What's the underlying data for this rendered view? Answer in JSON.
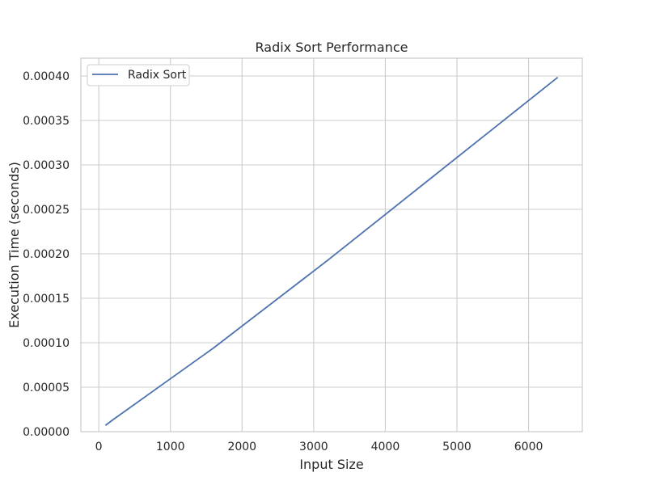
{
  "chart_data": {
    "type": "line",
    "title": "Radix Sort Performance",
    "xlabel": "Input Size",
    "ylabel": "Execution Time (seconds)",
    "xlim": [
      -250,
      6750
    ],
    "ylim": [
      0,
      0.00042
    ],
    "xticks": [
      0,
      1000,
      2000,
      3000,
      4000,
      5000,
      6000
    ],
    "xtick_labels": [
      "0",
      "1000",
      "2000",
      "3000",
      "4000",
      "5000",
      "6000"
    ],
    "yticks": [
      0,
      5e-05,
      0.0001,
      0.00015,
      0.0002,
      0.00025,
      0.0003,
      0.00035,
      0.0004
    ],
    "ytick_labels": [
      "0.00000",
      "0.00005",
      "0.00010",
      "0.00015",
      "0.00020",
      "0.00025",
      "0.00030",
      "0.00035",
      "0.00040"
    ],
    "grid": true,
    "legend_position": "top-left",
    "series": [
      {
        "name": "Radix Sort",
        "color": "#4c72b0",
        "x": [
          100,
          200,
          400,
          800,
          1600,
          3200,
          6400
        ],
        "y": [
          7.5e-06,
          1.35e-05,
          2.5e-05,
          4.8e-05,
          9.4e-05,
          0.000193,
          0.000398
        ]
      }
    ]
  }
}
